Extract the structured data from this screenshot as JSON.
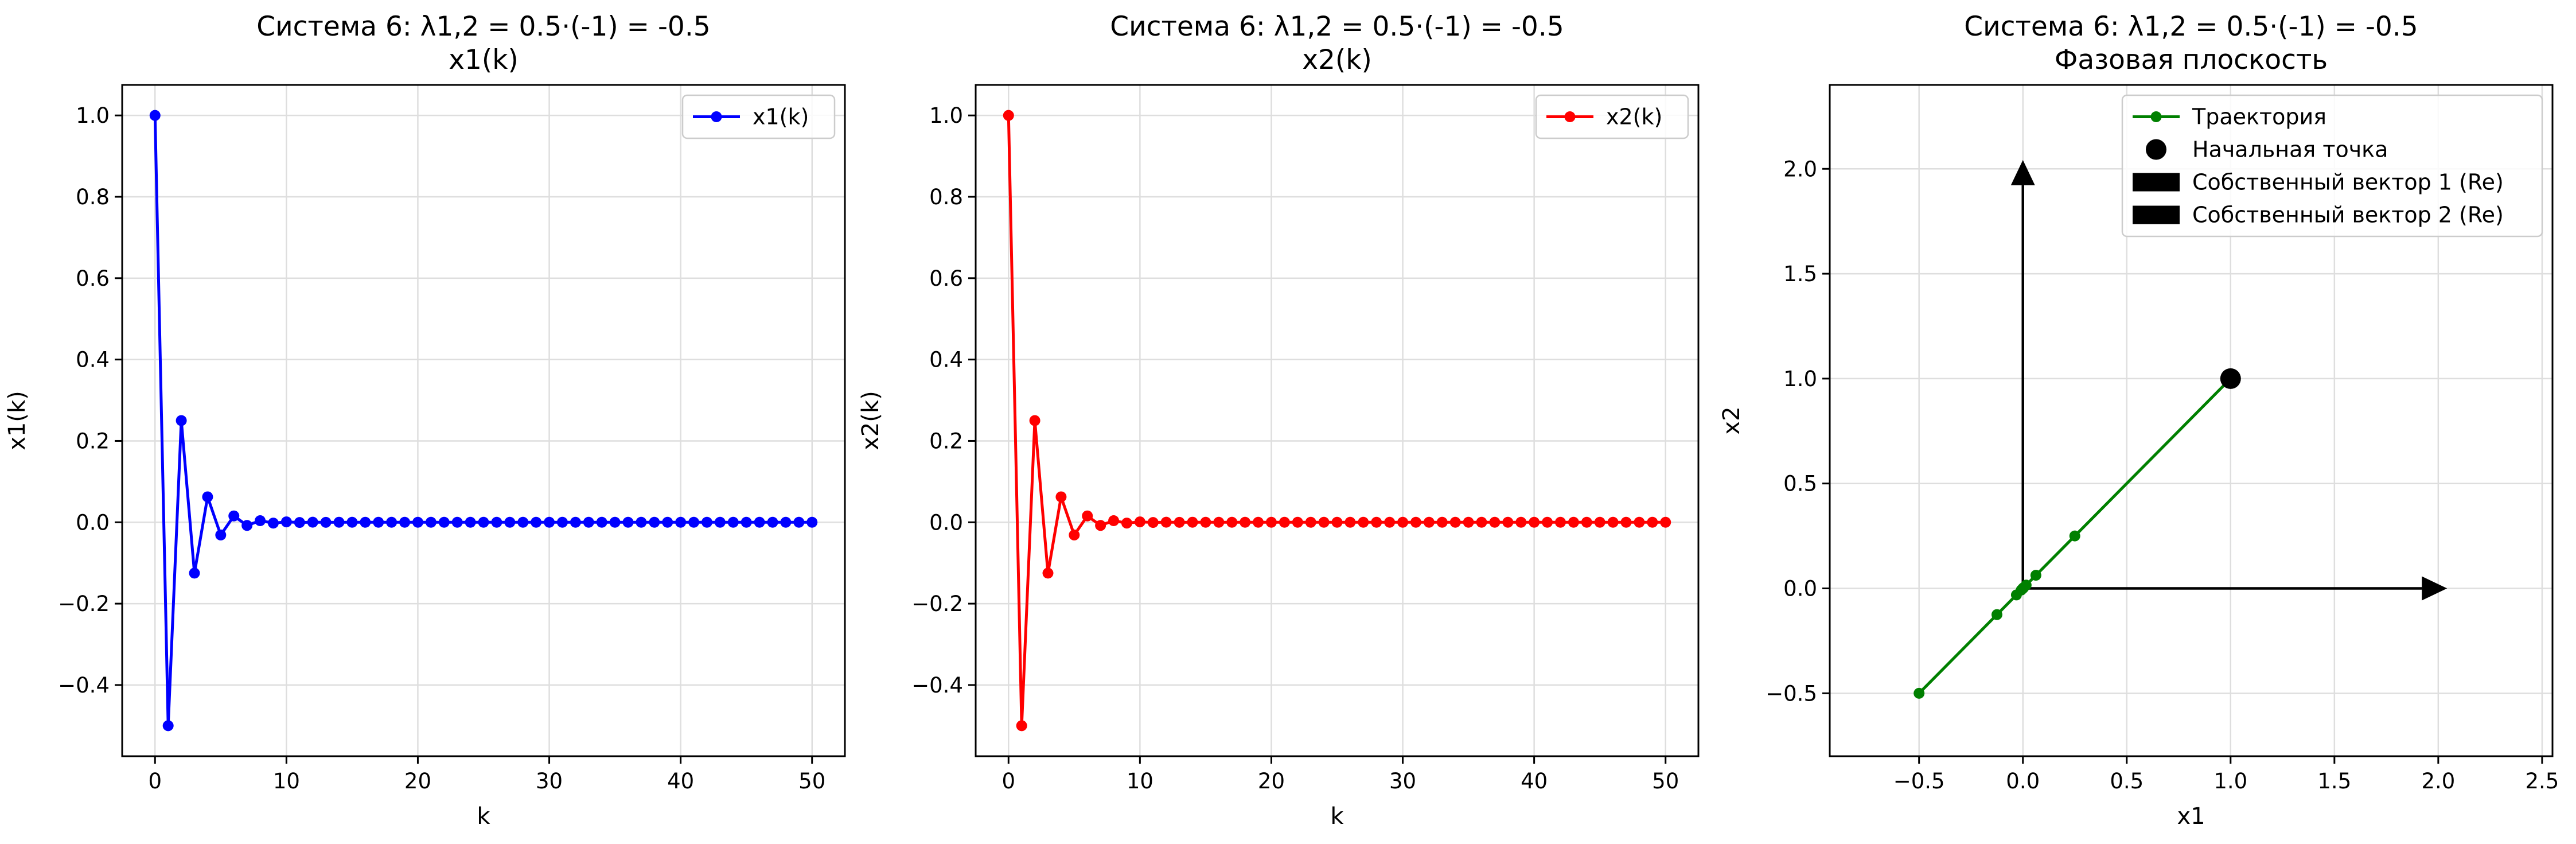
{
  "chart_data": [
    {
      "type": "line",
      "title": "Система 6: λ1,2 = 0.5·(-1) = -0.5\nx1(k)",
      "xlabel": "k",
      "ylabel": "x1(k)",
      "xlim": [
        -2.5,
        52.5
      ],
      "ylim": [
        -0.575,
        1.075
      ],
      "xticks": [
        0,
        10,
        20,
        30,
        40,
        50
      ],
      "yticks": [
        -0.4,
        -0.2,
        0.0,
        0.2,
        0.4,
        0.6,
        0.8,
        1.0
      ],
      "xtick_labels": [
        "0",
        "10",
        "20",
        "30",
        "40",
        "50"
      ],
      "ytick_labels": [
        "−0.4",
        "−0.2",
        "0.0",
        "0.2",
        "0.4",
        "0.6",
        "0.8",
        "1.0"
      ],
      "grid": true,
      "legend_position": "top-right",
      "series": [
        {
          "name": "x1(k)",
          "color": "#0000ff",
          "marker": "circle",
          "x": [
            0,
            1,
            2,
            3,
            4,
            5,
            6,
            7,
            8,
            9,
            10,
            11,
            12,
            13,
            14,
            15,
            16,
            17,
            18,
            19,
            20,
            21,
            22,
            23,
            24,
            25,
            26,
            27,
            28,
            29,
            30,
            31,
            32,
            33,
            34,
            35,
            36,
            37,
            38,
            39,
            40,
            41,
            42,
            43,
            44,
            45,
            46,
            47,
            48,
            49,
            50
          ],
          "y": [
            1.0,
            -0.5,
            0.25,
            -0.125,
            0.0625,
            -0.03125,
            0.015625,
            -0.0078,
            0.0039,
            -0.002,
            0.001,
            -0.0005,
            0.0002,
            -0.0001,
            0.0001,
            0,
            0,
            0,
            0,
            0,
            0,
            0,
            0,
            0,
            0,
            0,
            0,
            0,
            0,
            0,
            0,
            0,
            0,
            0,
            0,
            0,
            0,
            0,
            0,
            0,
            0,
            0,
            0,
            0,
            0,
            0,
            0,
            0,
            0,
            0,
            0
          ]
        }
      ]
    },
    {
      "type": "line",
      "title": "Система 6: λ1,2 = 0.5·(-1) = -0.5\nx2(k)",
      "xlabel": "k",
      "ylabel": "x2(k)",
      "xlim": [
        -2.5,
        52.5
      ],
      "ylim": [
        -0.575,
        1.075
      ],
      "xticks": [
        0,
        10,
        20,
        30,
        40,
        50
      ],
      "yticks": [
        -0.4,
        -0.2,
        0.0,
        0.2,
        0.4,
        0.6,
        0.8,
        1.0
      ],
      "xtick_labels": [
        "0",
        "10",
        "20",
        "30",
        "40",
        "50"
      ],
      "ytick_labels": [
        "−0.4",
        "−0.2",
        "0.0",
        "0.2",
        "0.4",
        "0.6",
        "0.8",
        "1.0"
      ],
      "grid": true,
      "legend_position": "top-right",
      "series": [
        {
          "name": "x2(k)",
          "color": "#ff0000",
          "marker": "circle",
          "x": [
            0,
            1,
            2,
            3,
            4,
            5,
            6,
            7,
            8,
            9,
            10,
            11,
            12,
            13,
            14,
            15,
            16,
            17,
            18,
            19,
            20,
            21,
            22,
            23,
            24,
            25,
            26,
            27,
            28,
            29,
            30,
            31,
            32,
            33,
            34,
            35,
            36,
            37,
            38,
            39,
            40,
            41,
            42,
            43,
            44,
            45,
            46,
            47,
            48,
            49,
            50
          ],
          "y": [
            1.0,
            -0.5,
            0.25,
            -0.125,
            0.0625,
            -0.03125,
            0.015625,
            -0.0078,
            0.0039,
            -0.002,
            0.001,
            -0.0005,
            0.0002,
            -0.0001,
            0.0001,
            0,
            0,
            0,
            0,
            0,
            0,
            0,
            0,
            0,
            0,
            0,
            0,
            0,
            0,
            0,
            0,
            0,
            0,
            0,
            0,
            0,
            0,
            0,
            0,
            0,
            0,
            0,
            0,
            0,
            0,
            0,
            0,
            0,
            0,
            0,
            0
          ]
        }
      ]
    },
    {
      "type": "line",
      "title": "Система 6: λ1,2 = 0.5·(-1) = -0.5\nФазовая плоскость",
      "xlabel": "x1",
      "ylabel": "x2",
      "xlim": [
        -0.93,
        2.55
      ],
      "ylim": [
        -0.8,
        2.4
      ],
      "xticks": [
        -0.5,
        0.0,
        0.5,
        1.0,
        1.5,
        2.0,
        2.5
      ],
      "yticks": [
        -0.5,
        0.0,
        0.5,
        1.0,
        1.5,
        2.0
      ],
      "xtick_labels": [
        "−0.5",
        "0.0",
        "0.5",
        "1.0",
        "1.5",
        "2.0",
        "2.5"
      ],
      "ytick_labels": [
        "−0.5",
        "0.0",
        "0.5",
        "1.0",
        "1.5",
        "2.0"
      ],
      "grid": true,
      "legend_position": "top-right",
      "series": [
        {
          "name": "Траектория",
          "color": "#008000",
          "marker": "circle",
          "x": [
            1.0,
            -0.5,
            0.25,
            -0.125,
            0.0625,
            -0.03125,
            0.015625,
            -0.0078,
            0.0039,
            -0.002,
            0.001,
            0
          ],
          "y": [
            1.0,
            -0.5,
            0.25,
            -0.125,
            0.0625,
            -0.03125,
            0.015625,
            -0.0078,
            0.0039,
            -0.002,
            0.001,
            0
          ]
        }
      ],
      "start_point": {
        "name": "Начальная точка",
        "x": 1.0,
        "y": 1.0,
        "color": "#000000"
      },
      "vectors": [
        {
          "name": "Собственный вектор 1 (Re)",
          "from": [
            0,
            0
          ],
          "to": [
            2.0,
            0.0
          ],
          "color": "#000000"
        },
        {
          "name": "Собственный вектор 2 (Re)",
          "from": [
            0,
            0
          ],
          "to": [
            0.0,
            2.0
          ],
          "color": "#000000"
        }
      ]
    }
  ]
}
